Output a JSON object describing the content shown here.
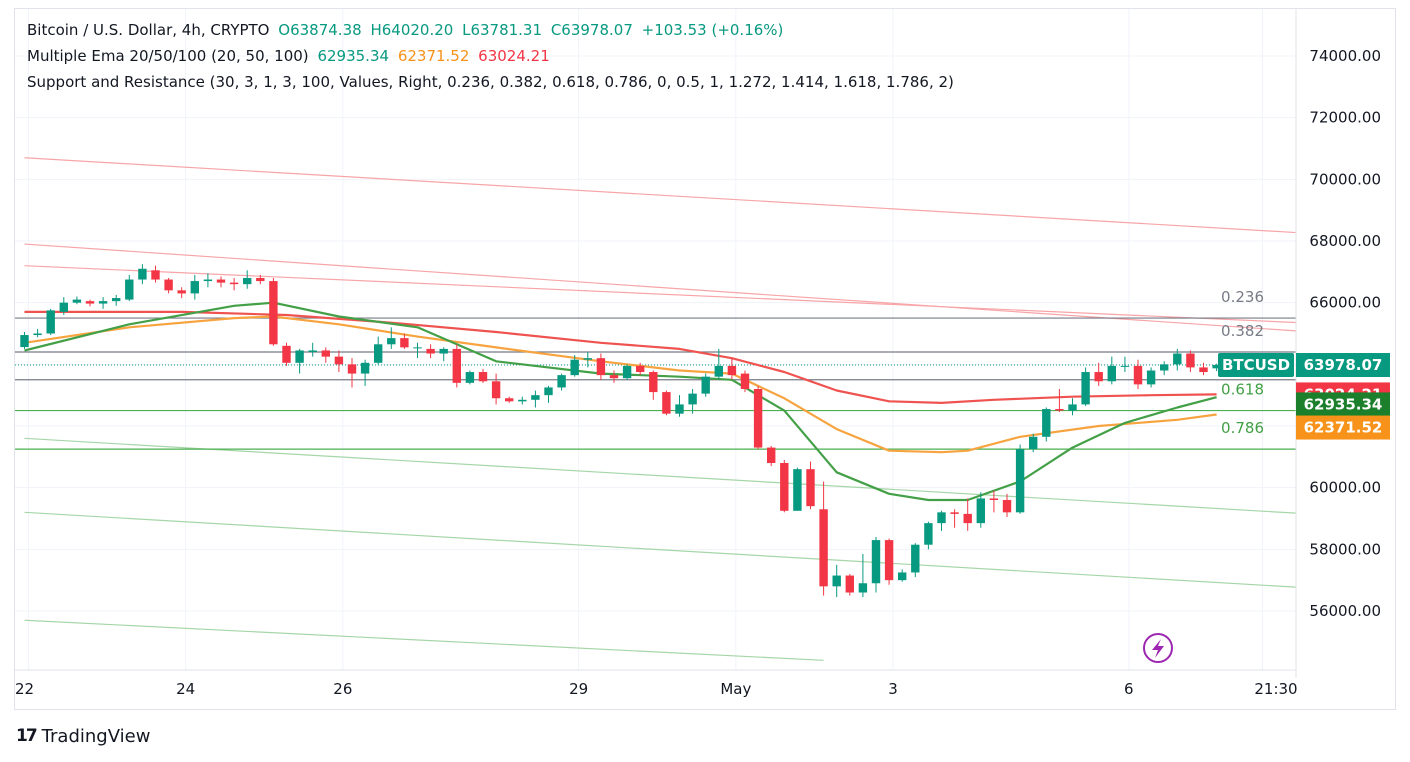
{
  "header": {
    "symbol_title": "Bitcoin / U.S. Dollar, 4h, CRYPTO",
    "open": "O63874.38",
    "high": "H64020.20",
    "low": "L63781.31",
    "close": "C63978.07",
    "change": "+103.53 (+0.16%)",
    "ema_label": "Multiple Ema 20/50/100 (20, 50, 100)",
    "ema20_value": "62935.34",
    "ema50_value": "62371.52",
    "ema100_value": "63024.21",
    "sr_label": "Support and Resistance (30, 3, 1, 3, 100, Values, Right, 0.236, 0.382, 0.618, 0.786, 0, 0.5, 1, 1.272, 1.414, 1.618, 1.786, 2)"
  },
  "footer": {
    "logo": "17",
    "brand": "TradingView"
  },
  "colors": {
    "up": "#089981",
    "down": "#f23645",
    "ema20": "#43a047",
    "ema50": "#f7a440",
    "ema100": "#ef5350",
    "resistance": "#f8a5a8",
    "support": "#a5d6a7"
  },
  "icon": "lightning-icon",
  "chart_data": {
    "type": "candlestick",
    "title": "Bitcoin / U.S. Dollar, 4h, CRYPTO",
    "ylim": [
      55200,
      75400
    ],
    "y_ticks": [
      "74000.00",
      "72000.00",
      "70000.00",
      "68000.00",
      "66000.00",
      "64000.00",
      "62000.00",
      "60000.00",
      "58000.00",
      "56000.00"
    ],
    "y_tick_values": [
      74000,
      72000,
      70000,
      68000,
      66000,
      64000,
      62000,
      60000,
      58000,
      56000
    ],
    "x_ticks": [
      {
        "label": "22",
        "i": 0.3
      },
      {
        "label": "24",
        "i": 12.3
      },
      {
        "label": "26",
        "i": 24.3
      },
      {
        "label": "29",
        "i": 42.3
      },
      {
        "label": "May",
        "i": 54.3
      },
      {
        "label": "3",
        "i": 66.3
      },
      {
        "label": "6",
        "i": 84.3
      },
      {
        "label": "21:30",
        "i": 94.5
      }
    ],
    "candles": [
      [
        64560,
        65050,
        64500,
        64950
      ],
      [
        64950,
        65150,
        64880,
        65000
      ],
      [
        65000,
        65800,
        64950,
        65750
      ],
      [
        65700,
        66180,
        65600,
        66000
      ],
      [
        66000,
        66200,
        65950,
        66100
      ],
      [
        66050,
        66100,
        65880,
        65970
      ],
      [
        65970,
        66180,
        65800,
        66050
      ],
      [
        66050,
        66250,
        65900,
        66150
      ],
      [
        66100,
        66900,
        66050,
        66750
      ],
      [
        66750,
        67250,
        66600,
        67100
      ],
      [
        67050,
        67200,
        66650,
        66750
      ],
      [
        66750,
        66800,
        66300,
        66400
      ],
      [
        66400,
        66500,
        66150,
        66300
      ],
      [
        66300,
        66900,
        66100,
        66700
      ],
      [
        66700,
        66950,
        66500,
        66750
      ],
      [
        66750,
        66850,
        66500,
        66650
      ],
      [
        66650,
        66800,
        66400,
        66600
      ],
      [
        66600,
        67050,
        66450,
        66800
      ],
      [
        66800,
        66900,
        66600,
        66700
      ],
      [
        66700,
        66800,
        64600,
        64650
      ],
      [
        64600,
        64700,
        63950,
        64050
      ],
      [
        64050,
        64500,
        63700,
        64450
      ],
      [
        64400,
        64700,
        64250,
        64450
      ],
      [
        64450,
        64550,
        64050,
        64250
      ],
      [
        64250,
        64450,
        63750,
        64000
      ],
      [
        64000,
        64200,
        63250,
        63700
      ],
      [
        63700,
        64150,
        63300,
        64050
      ],
      [
        64050,
        64900,
        64000,
        64650
      ],
      [
        64650,
        65200,
        64500,
        64850
      ],
      [
        64850,
        65000,
        64500,
        64550
      ],
      [
        64550,
        64700,
        64200,
        64550
      ],
      [
        64500,
        64650,
        64200,
        64350
      ],
      [
        64350,
        64550,
        64100,
        64500
      ],
      [
        64500,
        64650,
        63250,
        63400
      ],
      [
        63400,
        63800,
        63350,
        63750
      ],
      [
        63750,
        63850,
        63400,
        63450
      ],
      [
        63450,
        63700,
        62700,
        62900
      ],
      [
        62900,
        62950,
        62750,
        62800
      ],
      [
        62800,
        62950,
        62700,
        62850
      ],
      [
        62850,
        63150,
        62600,
        63000
      ],
      [
        63000,
        63300,
        62750,
        63250
      ],
      [
        63250,
        63700,
        63150,
        63650
      ],
      [
        63650,
        64300,
        63600,
        64150
      ],
      [
        64150,
        64400,
        63900,
        64200
      ],
      [
        64200,
        64350,
        63500,
        63650
      ],
      [
        63650,
        63800,
        63400,
        63550
      ],
      [
        63550,
        64000,
        63500,
        63950
      ],
      [
        63950,
        64050,
        63650,
        63750
      ],
      [
        63750,
        63800,
        62850,
        63100
      ],
      [
        63100,
        63150,
        62350,
        62400
      ],
      [
        62400,
        63000,
        62300,
        62700
      ],
      [
        62700,
        63200,
        62400,
        63050
      ],
      [
        63050,
        63700,
        62950,
        63600
      ],
      [
        63600,
        64500,
        63500,
        63950
      ],
      [
        63950,
        64200,
        63500,
        63650
      ],
      [
        63700,
        63800,
        63100,
        63200
      ],
      [
        63200,
        63300,
        61250,
        61300
      ],
      [
        61300,
        61350,
        60700,
        60800
      ],
      [
        60800,
        60900,
        59200,
        59250
      ],
      [
        59250,
        60650,
        59250,
        60600
      ],
      [
        60600,
        60850,
        59300,
        59400
      ],
      [
        59300,
        60200,
        56500,
        56800
      ],
      [
        56800,
        57500,
        56450,
        57150
      ],
      [
        57150,
        57200,
        56500,
        56600
      ],
      [
        56600,
        57850,
        56450,
        56900
      ],
      [
        56900,
        58400,
        56600,
        58300
      ],
      [
        58300,
        58350,
        56850,
        57000
      ],
      [
        57000,
        57350,
        56950,
        57250
      ],
      [
        57250,
        58200,
        57100,
        58150
      ],
      [
        58150,
        58900,
        58000,
        58850
      ],
      [
        58850,
        59250,
        58600,
        59200
      ],
      [
        59200,
        59300,
        58700,
        59150
      ],
      [
        59150,
        59650,
        58600,
        58850
      ],
      [
        58850,
        59850,
        58700,
        59650
      ],
      [
        59650,
        59900,
        59200,
        59600
      ],
      [
        59600,
        59800,
        59050,
        59200
      ],
      [
        59200,
        61400,
        59150,
        61250
      ],
      [
        61250,
        61750,
        61150,
        61650
      ],
      [
        61650,
        62600,
        61500,
        62550
      ],
      [
        62550,
        63200,
        62450,
        62500
      ],
      [
        62500,
        62900,
        62350,
        62700
      ],
      [
        62700,
        63900,
        62650,
        63750
      ],
      [
        63750,
        64050,
        63300,
        63450
      ],
      [
        63450,
        64250,
        63350,
        63950
      ],
      [
        63950,
        64250,
        63750,
        63950
      ],
      [
        63950,
        64150,
        63200,
        63350
      ],
      [
        63350,
        63900,
        63250,
        63800
      ],
      [
        63800,
        64100,
        63650,
        64000
      ],
      [
        64000,
        64500,
        63800,
        64350
      ],
      [
        64350,
        64450,
        63750,
        63900
      ],
      [
        63900,
        64050,
        63650,
        63750
      ],
      [
        63870,
        64020,
        63780,
        63978
      ]
    ],
    "ema20": [
      [
        0,
        64450
      ],
      [
        8,
        65300
      ],
      [
        16,
        65900
      ],
      [
        19,
        66000
      ],
      [
        24,
        65550
      ],
      [
        30,
        65200
      ],
      [
        36,
        64100
      ],
      [
        44,
        63700
      ],
      [
        50,
        63600
      ],
      [
        54,
        63500
      ],
      [
        58,
        62500
      ],
      [
        62,
        60500
      ],
      [
        66,
        59800
      ],
      [
        69,
        59600
      ],
      [
        72,
        59600
      ],
      [
        76,
        60200
      ],
      [
        80,
        61300
      ],
      [
        84,
        62100
      ],
      [
        88,
        62600
      ],
      [
        91,
        62935
      ]
    ],
    "ema50": [
      [
        0,
        64700
      ],
      [
        8,
        65200
      ],
      [
        16,
        65500
      ],
      [
        19,
        65550
      ],
      [
        24,
        65300
      ],
      [
        30,
        64900
      ],
      [
        36,
        64550
      ],
      [
        44,
        64100
      ],
      [
        50,
        63800
      ],
      [
        54,
        63700
      ],
      [
        58,
        62900
      ],
      [
        62,
        61900
      ],
      [
        66,
        61200
      ],
      [
        70,
        61150
      ],
      [
        72,
        61200
      ],
      [
        76,
        61650
      ],
      [
        82,
        62000
      ],
      [
        88,
        62200
      ],
      [
        91,
        62372
      ]
    ],
    "ema100": [
      [
        0,
        65700
      ],
      [
        12,
        65700
      ],
      [
        20,
        65600
      ],
      [
        28,
        65350
      ],
      [
        36,
        65050
      ],
      [
        44,
        64700
      ],
      [
        50,
        64500
      ],
      [
        54,
        64200
      ],
      [
        58,
        63750
      ],
      [
        62,
        63150
      ],
      [
        66,
        62800
      ],
      [
        70,
        62750
      ],
      [
        74,
        62850
      ],
      [
        80,
        62950
      ],
      [
        86,
        63000
      ],
      [
        91,
        63024
      ]
    ],
    "horizontal_levels": [
      {
        "label": "0.236",
        "value": 65500,
        "kind": "gray"
      },
      {
        "label": "0.382",
        "value": 64400,
        "kind": "gray"
      },
      {
        "label": "",
        "value": 63500,
        "kind": "gray"
      },
      {
        "label": "0.618",
        "value": 62500,
        "kind": "green"
      },
      {
        "label": "0.786",
        "value": 61250,
        "kind": "green"
      }
    ],
    "trend_lines": [
      {
        "kind": "resistance",
        "from": [
          0,
          70700
        ],
        "to": [
          100,
          68200
        ]
      },
      {
        "kind": "resistance",
        "from": [
          0,
          67900
        ],
        "to": [
          100,
          65000
        ]
      },
      {
        "kind": "resistance",
        "from": [
          0,
          67200
        ],
        "to": [
          100,
          65300
        ]
      },
      {
        "kind": "support",
        "from": [
          0,
          61600
        ],
        "to": [
          100,
          59100
        ]
      },
      {
        "kind": "support",
        "from": [
          0,
          59200
        ],
        "to": [
          100,
          56700
        ]
      },
      {
        "kind": "support",
        "from": [
          0,
          55700
        ],
        "to": [
          61,
          54400
        ]
      }
    ],
    "current_price": {
      "symbol": "BTCUSD",
      "value": "63978.07",
      "y": 63978
    },
    "price_labels": [
      {
        "value": "63024.21",
        "y": 63024,
        "color": "#f23645"
      },
      {
        "value": "62935.34",
        "y": 62700,
        "color": "#1b7f2b"
      },
      {
        "value": "62371.52",
        "y": 61950,
        "color": "#f7931a"
      }
    ]
  }
}
